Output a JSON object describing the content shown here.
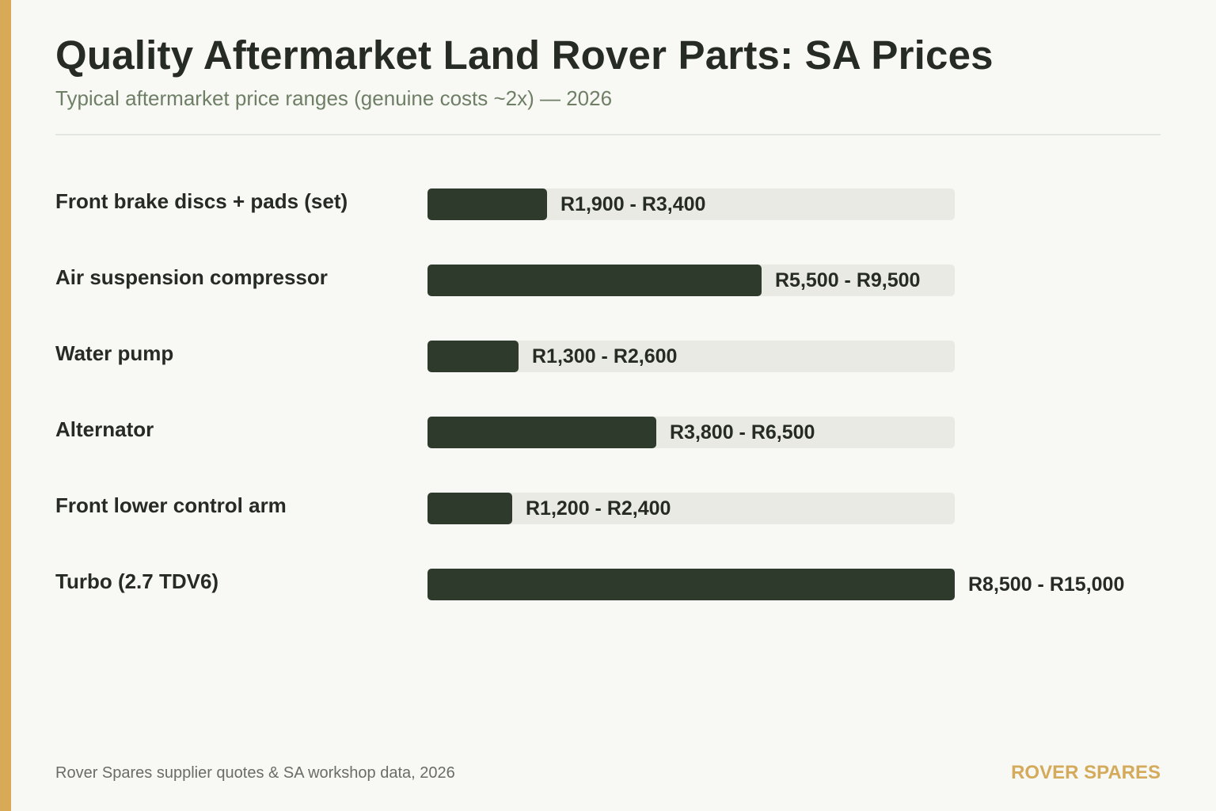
{
  "header": {
    "title": "Quality Aftermarket Land Rover Parts: SA Prices",
    "subtitle": "Typical aftermarket price ranges (genuine costs ~2x) — 2026"
  },
  "footer": {
    "source": "Rover Spares supplier quotes & SA workshop data, 2026",
    "brand": "ROVER SPARES"
  },
  "colors": {
    "accent": "#d8aa55",
    "bar_fill": "#2e3a2b",
    "bar_track": "#e8eae3",
    "brand": "#d4aa5b"
  },
  "chart_data": {
    "type": "bar",
    "orientation": "horizontal",
    "title": "Quality Aftermarket Land Rover Parts: SA Prices",
    "subtitle": "Typical aftermarket price ranges (genuine costs ~2x) — 2026",
    "categories": [
      "Front brake discs + pads (set)",
      "Air suspension compressor",
      "Water pump",
      "Alternator",
      "Front lower control arm",
      "Turbo (2.7 TDV6)"
    ],
    "series": [
      {
        "range_low": [
          1900,
          5500,
          1300,
          3800,
          1200,
          8500
        ],
        "range_high": [
          3400,
          9500,
          2600,
          6500,
          2400,
          15000
        ],
        "values": [
          3400,
          9500,
          2600,
          6500,
          2400,
          15000
        ]
      }
    ],
    "value_labels": [
      "R1,900 - R3,400",
      "R5,500 - R9,500",
      "R1,300 - R2,600",
      "R3,800 - R6,500",
      "R1,200 - R2,400",
      "R8,500 - R15,000"
    ],
    "xlim": [
      0,
      15000
    ],
    "grid": false,
    "legend": "none"
  }
}
